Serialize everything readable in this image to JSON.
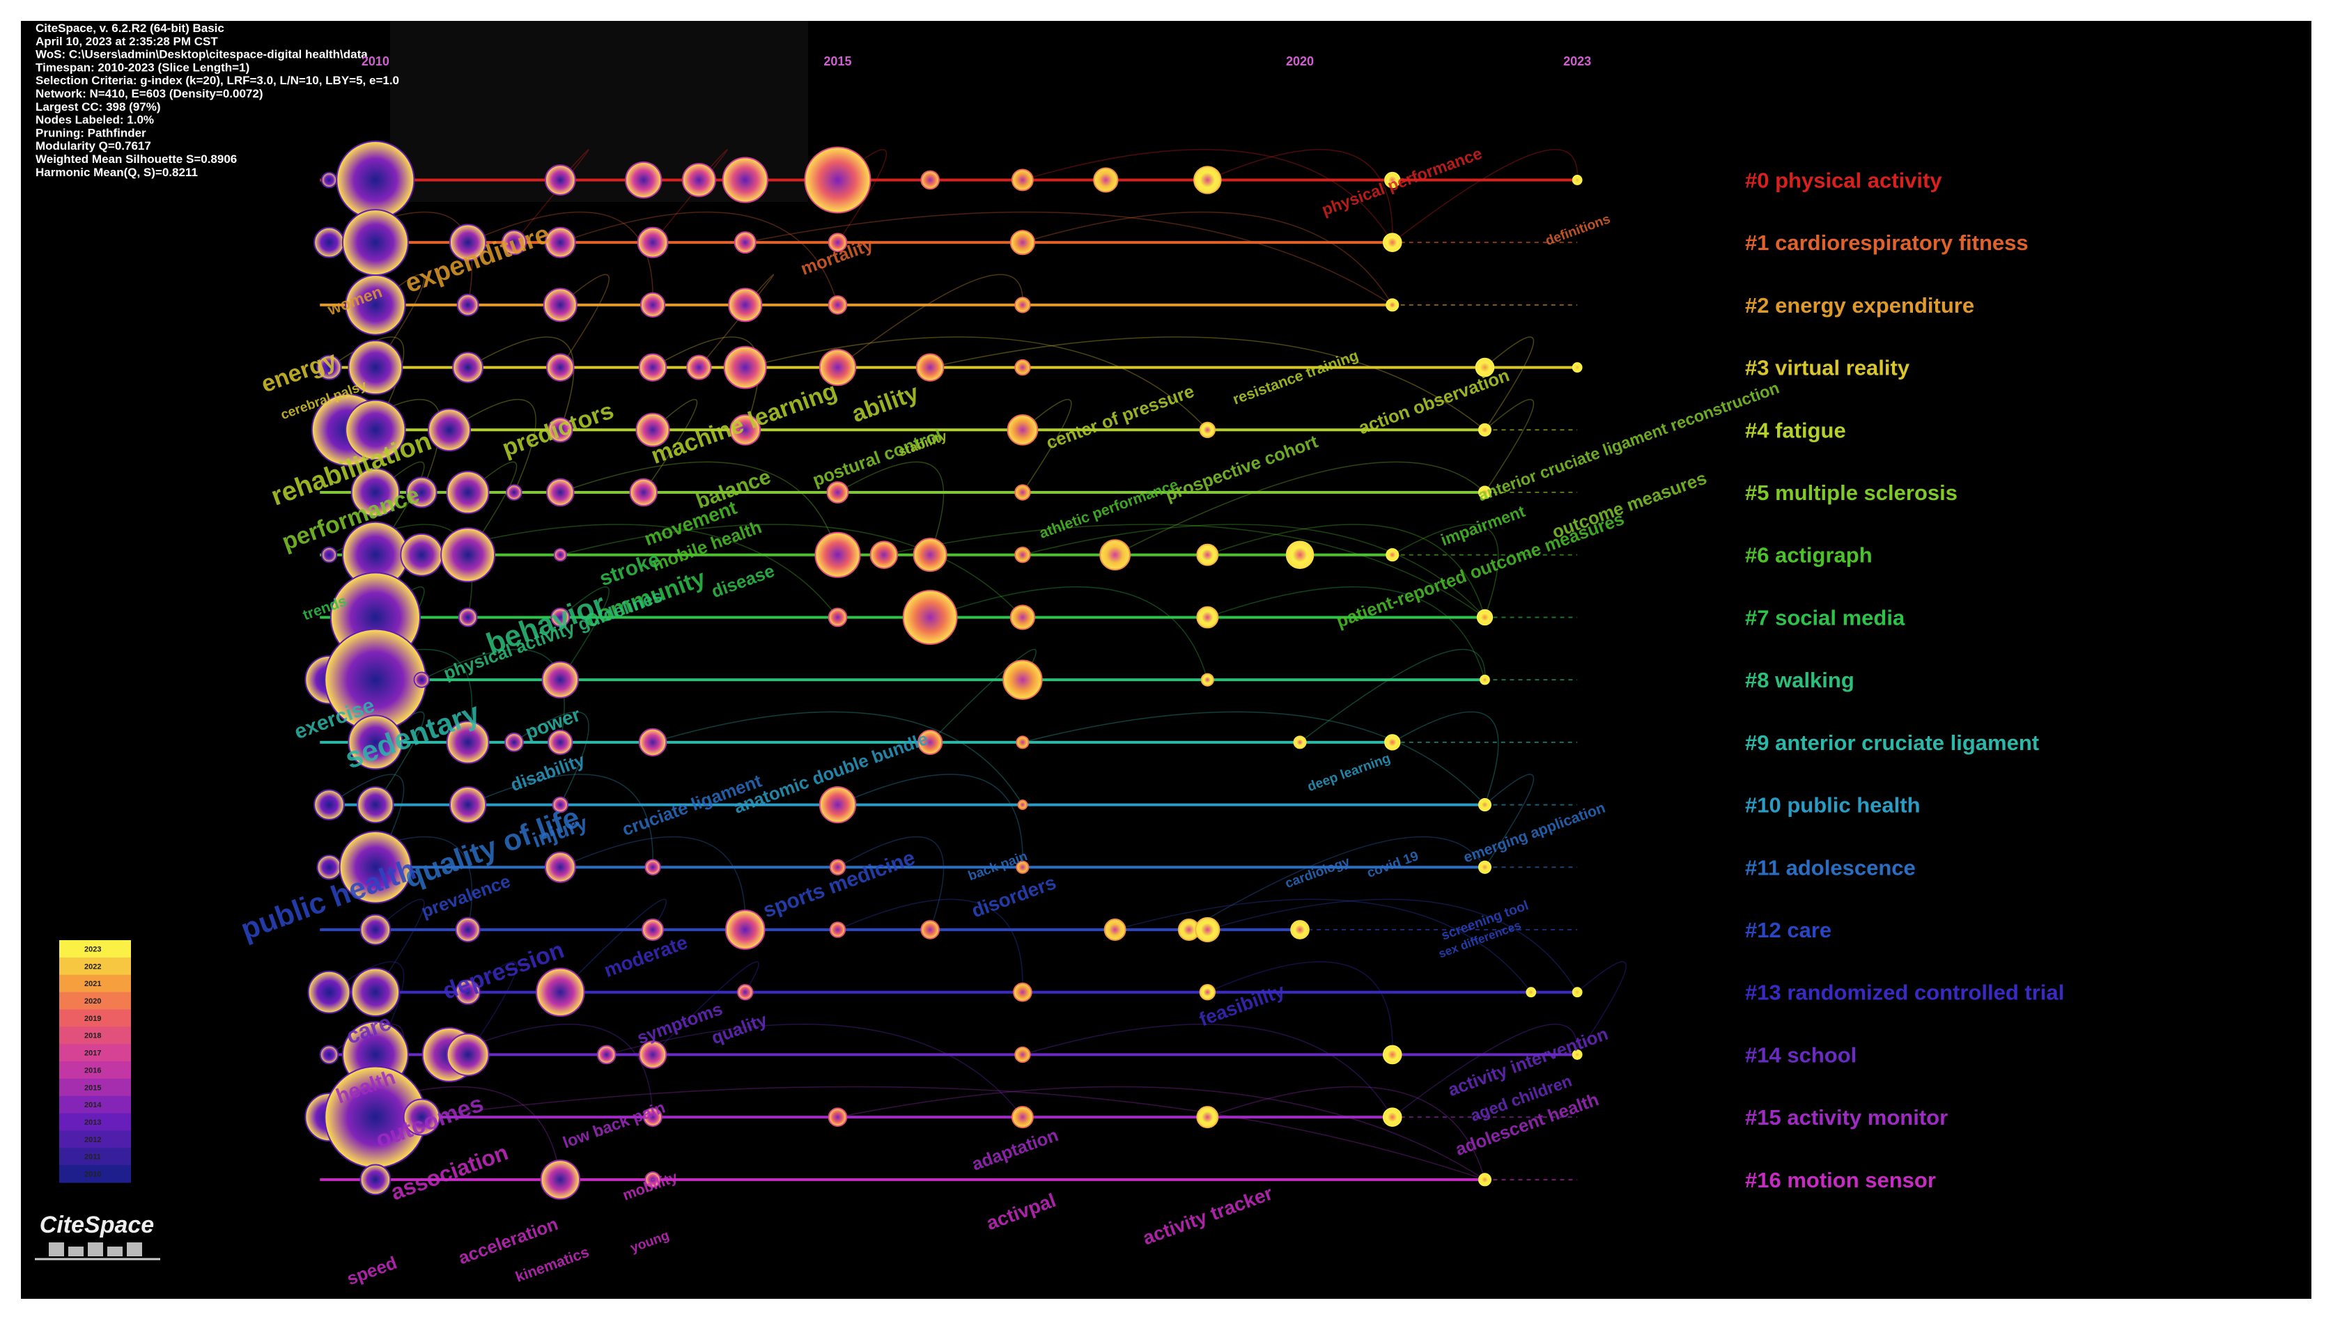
{
  "header": {
    "lines": [
      "CiteSpace, v. 6.2.R2 (64-bit) Basic",
      "April 10, 2023 at 2:35:28 PM CST",
      "WoS: C:\\Users\\admin\\Desktop\\citespace-digital health\\data",
      "Timespan: 2010-2023 (Slice Length=1)",
      "Selection Criteria: g-index (k=20), LRF=3.0, L/N=10, LBY=5, e=1.0",
      "Network: N=410, E=603 (Density=0.0072)",
      "Largest CC: 398 (97%)",
      "Nodes Labeled: 1.0%",
      "Pruning: Pathfinder",
      "Modularity Q=0.7617",
      "Weighted Mean Silhouette S=0.8906",
      "Harmonic Mean(Q, S)=0.8211"
    ]
  },
  "timeline": {
    "years": [
      2010,
      2015,
      2020,
      2023
    ],
    "xlim": [
      2009.4,
      2023
    ]
  },
  "clusters": [
    {
      "label": "#0 physical activity",
      "color": "#d8201f",
      "nodes": [
        [
          2009.5,
          5
        ],
        [
          2010,
          26
        ],
        [
          2012,
          10
        ],
        [
          2012.9,
          12
        ],
        [
          2013.5,
          11
        ],
        [
          2014,
          15
        ],
        [
          2015,
          22
        ],
        [
          2016,
          6
        ],
        [
          2017,
          7
        ],
        [
          2017.9,
          8
        ],
        [
          2019,
          9
        ],
        [
          2021,
          5
        ],
        [
          2023,
          3
        ]
      ],
      "keywords": [
        "physical performance"
      ]
    },
    {
      "label": "#1 cardiorespiratory fitness",
      "color": "#e0622a",
      "nodes": [
        [
          2009.5,
          10
        ],
        [
          2010,
          22
        ],
        [
          2011,
          12
        ],
        [
          2011.5,
          8
        ],
        [
          2012,
          10
        ],
        [
          2013,
          10
        ],
        [
          2014,
          7
        ],
        [
          2015,
          6
        ],
        [
          2017,
          8
        ],
        [
          2021,
          6
        ]
      ],
      "keywords": [
        "mortality",
        "definitions"
      ]
    },
    {
      "label": "#2 energy expenditure",
      "color": "#e09a2a",
      "nodes": [
        [
          2010,
          20
        ],
        [
          2011,
          7
        ],
        [
          2012,
          11
        ],
        [
          2013,
          8
        ],
        [
          2014,
          11
        ],
        [
          2015,
          6
        ],
        [
          2017,
          5
        ],
        [
          2021,
          4
        ]
      ],
      "keywords": [
        "women",
        "expenditure"
      ]
    },
    {
      "label": "#3 virtual reality",
      "color": "#d9c62a",
      "nodes": [
        [
          2009.5,
          8
        ],
        [
          2010,
          18
        ],
        [
          2011,
          10
        ],
        [
          2012,
          9
        ],
        [
          2013,
          9
        ],
        [
          2013.5,
          8
        ],
        [
          2014,
          14
        ],
        [
          2015,
          12
        ],
        [
          2016,
          9
        ],
        [
          2017,
          5
        ],
        [
          2022,
          6
        ],
        [
          2023,
          3
        ]
      ],
      "keywords": [
        "energy",
        "cerebral palsy"
      ]
    },
    {
      "label": "#4 fatigue",
      "color": "#b5d02a",
      "nodes": [
        [
          2009.7,
          24
        ],
        [
          2010,
          20
        ],
        [
          2010.8,
          14
        ],
        [
          2012,
          8
        ],
        [
          2013,
          11
        ],
        [
          2014,
          10
        ],
        [
          2017,
          10
        ],
        [
          2019,
          5
        ],
        [
          2022,
          4
        ]
      ],
      "keywords": [
        "rehabilitation",
        "predictors",
        "machine learning",
        "ability",
        "stability",
        "center of pressure",
        "resistance training",
        "action observation"
      ]
    },
    {
      "label": "#5 multiple sclerosis",
      "color": "#7fc92a",
      "nodes": [
        [
          2010,
          16
        ],
        [
          2010.5,
          10
        ],
        [
          2011,
          14
        ],
        [
          2011.5,
          5
        ],
        [
          2012,
          9
        ],
        [
          2012.9,
          9
        ],
        [
          2015,
          7
        ],
        [
          2017,
          5
        ],
        [
          2022,
          4
        ]
      ],
      "keywords": [
        "performance",
        "postural control",
        "anterior cruciate ligament reconstruction",
        "outcome measures",
        "prospective cohort",
        "balance"
      ]
    },
    {
      "label": "#6 actigraph",
      "color": "#4cc22a",
      "nodes": [
        [
          2009.5,
          5
        ],
        [
          2010,
          22
        ],
        [
          2010.5,
          14
        ],
        [
          2011,
          18
        ],
        [
          2012,
          4
        ],
        [
          2015,
          15
        ],
        [
          2015.5,
          9
        ],
        [
          2016,
          11
        ],
        [
          2017,
          5
        ],
        [
          2018,
          10
        ],
        [
          2019,
          7
        ],
        [
          2020,
          9
        ],
        [
          2021,
          4
        ]
      ],
      "keywords": [
        "patient-reported outcome measures",
        "impairment",
        "athletic performance",
        "movement",
        "mobile health"
      ]
    },
    {
      "label": "#7 social media",
      "color": "#2ec24a",
      "nodes": [
        [
          2010,
          30
        ],
        [
          2011,
          6
        ],
        [
          2012,
          6
        ],
        [
          2015,
          6
        ],
        [
          2016,
          18
        ],
        [
          2017,
          8
        ],
        [
          2019,
          7
        ],
        [
          2022,
          5
        ]
      ],
      "keywords": [
        "stroke",
        "community",
        "disease",
        "trends"
      ]
    },
    {
      "label": "#8 walking",
      "color": "#2cbf7a",
      "nodes": [
        [
          2009.5,
          16
        ],
        [
          2010,
          34
        ],
        [
          2010.5,
          5
        ],
        [
          2012,
          12
        ],
        [
          2017,
          13
        ],
        [
          2019,
          4
        ],
        [
          2022,
          3
        ]
      ],
      "keywords": [
        "behavior",
        "physical activity guidelines"
      ]
    },
    {
      "label": "#9 anterior cruciate ligament",
      "color": "#2cb8a8",
      "nodes": [
        [
          2010,
          18
        ],
        [
          2011,
          14
        ],
        [
          2011.5,
          6
        ],
        [
          2012,
          8
        ],
        [
          2013,
          9
        ],
        [
          2016,
          8
        ],
        [
          2017,
          4
        ],
        [
          2020,
          4
        ],
        [
          2021,
          5
        ]
      ],
      "keywords": [
        "sedentary",
        "exercise",
        "power"
      ]
    },
    {
      "label": "#10 public health",
      "color": "#2a9cc4",
      "nodes": [
        [
          2009.5,
          10
        ],
        [
          2010,
          12
        ],
        [
          2011,
          12
        ],
        [
          2012,
          5
        ],
        [
          2015,
          12
        ],
        [
          2017,
          3
        ],
        [
          2022,
          4
        ]
      ],
      "keywords": [
        "disability",
        "anatomic double bundle",
        "deep learning"
      ]
    },
    {
      "label": "#11 adolescence",
      "color": "#2a6ec4",
      "nodes": [
        [
          2009.5,
          8
        ],
        [
          2010,
          24
        ],
        [
          2012,
          10
        ],
        [
          2013,
          5
        ],
        [
          2015,
          5
        ],
        [
          2017,
          4
        ],
        [
          2022,
          4
        ]
      ],
      "keywords": [
        "cruciate ligament",
        "injury",
        "quality of life",
        "back pain",
        "cardiology",
        "covid 19",
        "emerging application"
      ]
    },
    {
      "label": "#12 care",
      "color": "#2a46c4",
      "nodes": [
        [
          2010,
          10
        ],
        [
          2011,
          8
        ],
        [
          2013,
          7
        ],
        [
          2014,
          13
        ],
        [
          2015,
          5
        ],
        [
          2016,
          6
        ],
        [
          2018,
          7
        ],
        [
          2018.8,
          7
        ],
        [
          2019,
          8
        ],
        [
          2020,
          6
        ]
      ],
      "keywords": [
        "sports medicine",
        "disorders",
        "public health",
        "prevalence",
        "screening tool",
        "sex differences"
      ]
    },
    {
      "label": "#13 randomized controlled trial",
      "color": "#3a2ac4",
      "nodes": [
        [
          2009.5,
          14
        ],
        [
          2010,
          16
        ],
        [
          2011,
          8
        ],
        [
          2012,
          16
        ],
        [
          2014,
          5
        ],
        [
          2017,
          6
        ],
        [
          2019,
          5
        ],
        [
          2022.5,
          3
        ],
        [
          2023,
          3
        ]
      ],
      "keywords": [
        "moderate",
        "depression",
        "feasibility"
      ]
    },
    {
      "label": "#14 school",
      "color": "#6a2ac4",
      "nodes": [
        [
          2009.5,
          6
        ],
        [
          2010,
          22
        ],
        [
          2010.8,
          18
        ],
        [
          2011,
          14
        ],
        [
          2012.5,
          6
        ],
        [
          2013,
          9
        ],
        [
          2017,
          5
        ],
        [
          2021,
          6
        ],
        [
          2023,
          3
        ]
      ],
      "keywords": [
        "symptoms",
        "quality",
        "care",
        "activity intervention",
        "aged children"
      ]
    },
    {
      "label": "#15 activity monitor",
      "color": "#a02ac4",
      "nodes": [
        [
          2009.5,
          16
        ],
        [
          2010,
          34
        ],
        [
          2010.5,
          12
        ],
        [
          2013,
          6
        ],
        [
          2015,
          6
        ],
        [
          2017,
          7
        ],
        [
          2019,
          7
        ],
        [
          2021,
          6
        ]
      ],
      "keywords": [
        "health",
        "outcomes",
        "adaptation",
        "adolescent health",
        "low back pain"
      ]
    },
    {
      "label": "#16 motion sensor",
      "color": "#c82ac4",
      "nodes": [
        [
          2010,
          10
        ],
        [
          2012,
          13
        ],
        [
          2013,
          5
        ],
        [
          2022,
          4
        ]
      ],
      "keywords": [
        "association",
        "acceleration",
        "kinematics",
        "young",
        "speed",
        "activpal",
        "activity tracker",
        "mobility"
      ]
    }
  ],
  "legend": {
    "years": [
      2023,
      2022,
      2021,
      2020,
      2019,
      2018,
      2017,
      2016,
      2015,
      2014,
      2013,
      2012,
      2011,
      2010
    ]
  },
  "logo": "CiteSpace"
}
